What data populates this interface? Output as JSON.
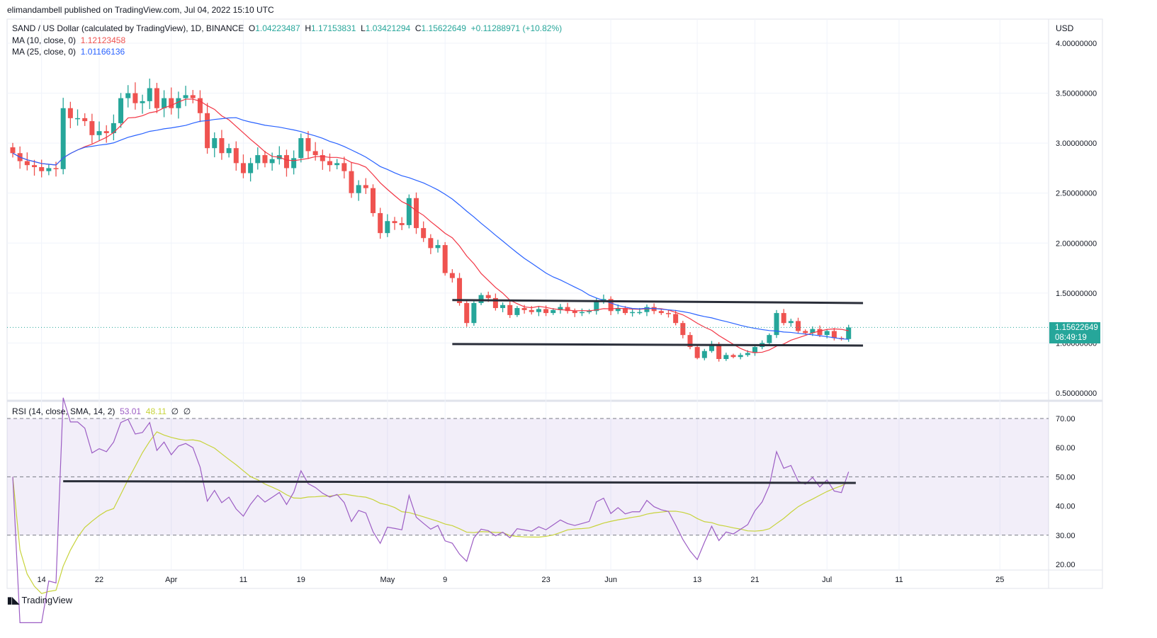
{
  "header": {
    "publisher": "elimandambell published on TradingView.com, Jul 04, 2022 15:10 UTC"
  },
  "legend": {
    "symbol": "SAND / US Dollar (calculated by TradingView), 1D, BINANCE",
    "o_label": "O",
    "o": "1.04223487",
    "h_label": "H",
    "h": "1.17153831",
    "l_label": "L",
    "l": "1.03421294",
    "c_label": "C",
    "c": "1.15622649",
    "change": "+0.11288971 (+10.82%)",
    "ma10_label": "MA (10, close, 0)",
    "ma10": "1.12123458",
    "ma25_label": "MA (25, close, 0)",
    "ma25": "1.01166136",
    "rsi_label": "RSI (14, close, SMA, 14, 2)",
    "rsi": "53.01",
    "rsi_sma": "48.11",
    "extra1": "∅",
    "extra2": "∅"
  },
  "currency": "USD",
  "last_price": {
    "value": "1.15622649",
    "countdown": "08:49:19"
  },
  "logo": "TradingView",
  "colors": {
    "up": "#26a69a",
    "down": "#ef5350",
    "ma10": "#f23645",
    "ma25": "#2962ff",
    "rsi": "#9c5dc4",
    "rsi_sma": "#c7d33a",
    "band": "#7e57c2"
  },
  "chart_data": {
    "type": "candlestick",
    "start_date": "2022-03-10",
    "close": [
      2.9,
      2.82,
      2.78,
      2.76,
      2.72,
      2.75,
      2.74,
      3.35,
      3.25,
      3.25,
      3.22,
      3.08,
      3.12,
      3.1,
      3.2,
      3.45,
      3.5,
      3.4,
      3.42,
      3.55,
      3.35,
      3.45,
      3.35,
      3.45,
      3.48,
      3.45,
      3.3,
      2.95,
      3.05,
      2.9,
      2.95,
      2.8,
      2.7,
      2.8,
      2.88,
      2.8,
      2.84,
      2.88,
      2.75,
      2.85,
      3.05,
      2.92,
      2.88,
      2.82,
      2.78,
      2.8,
      2.72,
      2.5,
      2.58,
      2.55,
      2.3,
      2.1,
      2.22,
      2.2,
      2.18,
      2.45,
      2.15,
      2.05,
      1.95,
      1.98,
      1.7,
      1.65,
      1.4,
      1.2,
      1.4,
      1.48,
      1.45,
      1.35,
      1.38,
      1.28,
      1.35,
      1.33,
      1.31,
      1.34,
      1.3,
      1.33,
      1.36,
      1.32,
      1.3,
      1.31,
      1.32,
      1.42,
      1.44,
      1.32,
      1.35,
      1.3,
      1.31,
      1.31,
      1.36,
      1.32,
      1.3,
      1.29,
      1.2,
      1.08,
      0.96,
      0.85,
      0.92,
      0.99,
      0.84,
      0.88,
      0.86,
      0.88,
      0.9,
      0.96,
      1.0,
      1.08,
      1.3,
      1.2,
      1.22,
      1.12,
      1.1,
      1.14,
      1.08,
      1.12,
      1.05,
      1.04,
      1.156
    ],
    "price_ticks": [
      "4.00000000",
      "3.50000000",
      "3.00000000",
      "2.50000000",
      "2.00000000",
      "1.50000000",
      "1.00000000",
      "0.50000000"
    ],
    "price_range": [
      0.5,
      4.0
    ],
    "rsi_ticks": [
      "70.00",
      "60.00",
      "50.00",
      "40.00",
      "30.00",
      "20.00"
    ],
    "rsi_range": [
      20,
      70
    ],
    "rsi_band": [
      30,
      70
    ],
    "x_ticks": [
      {
        "label": "14",
        "day": 4
      },
      {
        "label": "22",
        "day": 12
      },
      {
        "label": "Apr",
        "day": 22
      },
      {
        "label": "11",
        "day": 32
      },
      {
        "label": "19",
        "day": 40
      },
      {
        "label": "May",
        "day": 52
      },
      {
        "label": "9",
        "day": 60
      },
      {
        "label": "23",
        "day": 74
      },
      {
        "label": "Jun",
        "day": 83
      },
      {
        "label": "13",
        "day": 95
      },
      {
        "label": "21",
        "day": 103
      },
      {
        "label": "Jul",
        "day": 113
      },
      {
        "label": "11",
        "day": 123
      },
      {
        "label": "25",
        "day": 137
      }
    ],
    "drawings": [
      {
        "pane": "price",
        "from": {
          "day": 61,
          "value": 1.43
        },
        "to": {
          "day": 118,
          "value": 1.4
        }
      },
      {
        "pane": "price",
        "from": {
          "day": 61,
          "value": 0.99
        },
        "to": {
          "day": 118,
          "value": 0.975
        }
      },
      {
        "pane": "rsi",
        "from": {
          "day": 7,
          "value": 48.5
        },
        "to": {
          "day": 117,
          "value": 47.9
        }
      }
    ]
  }
}
